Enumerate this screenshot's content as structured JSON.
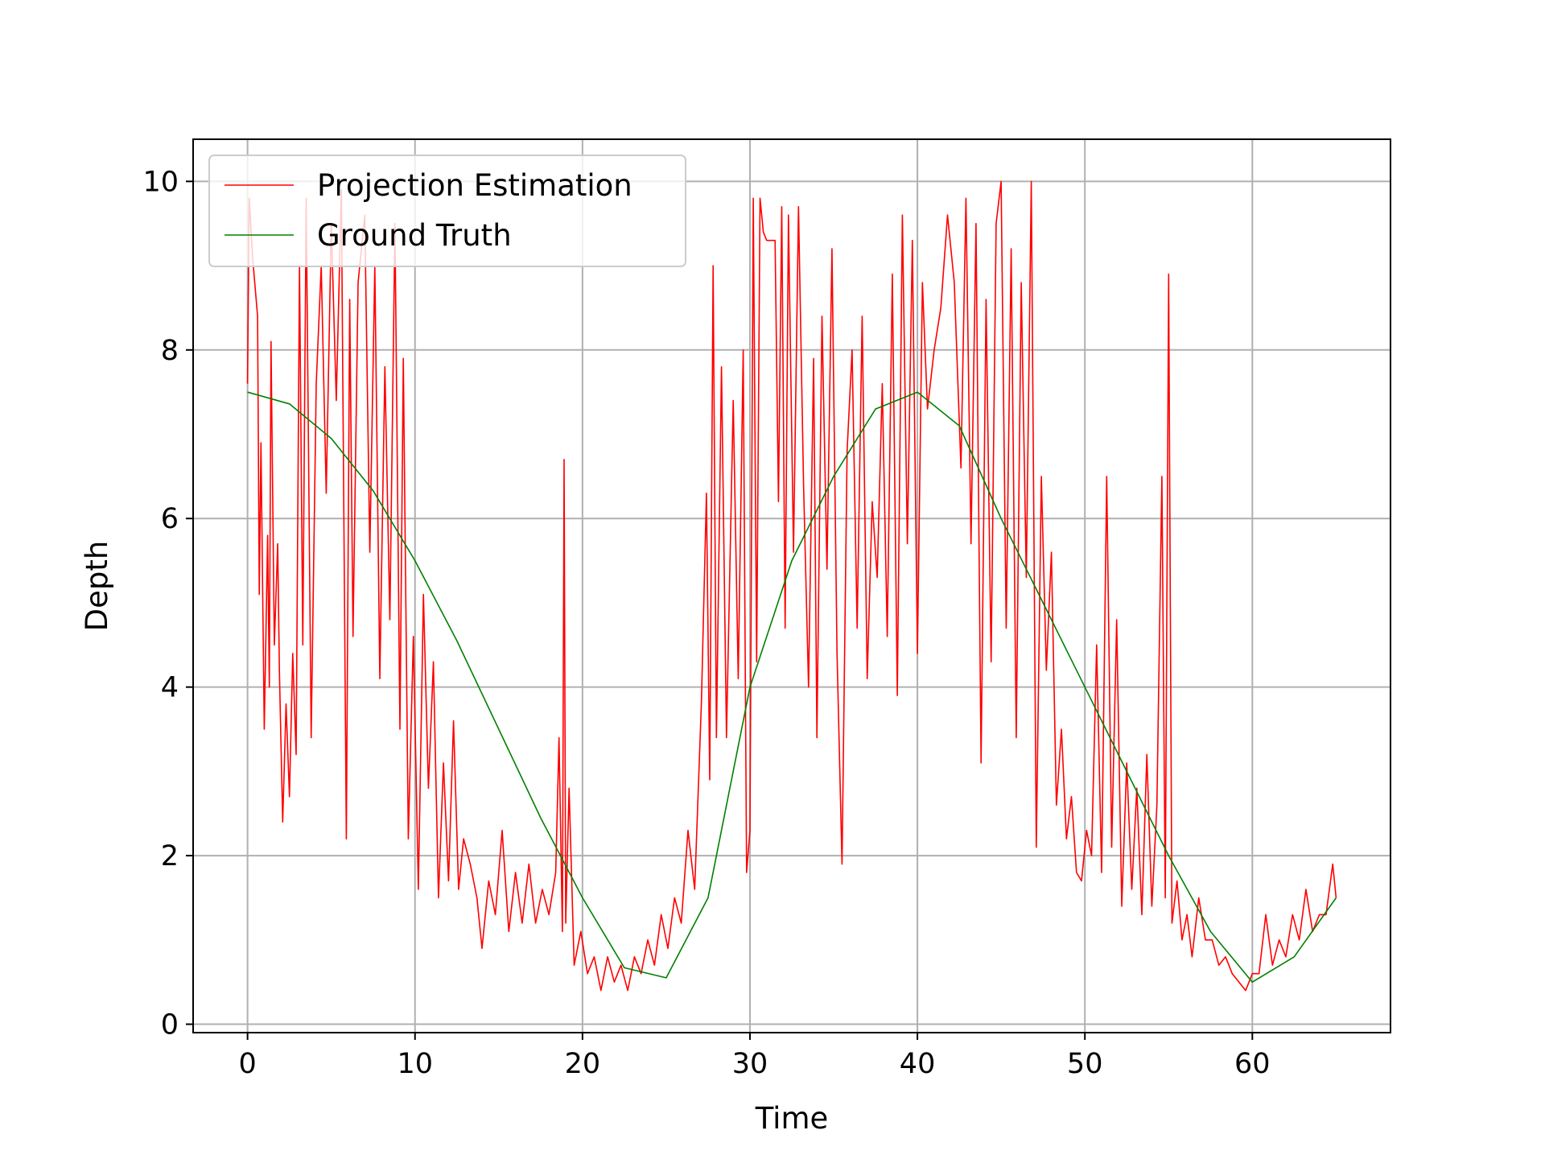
{
  "chart_data": {
    "type": "line",
    "title": "",
    "xlabel": "Time",
    "ylabel": "Depth",
    "xlim": [
      -3.25,
      68.25
    ],
    "ylim": [
      -0.1,
      10.5
    ],
    "x_ticks": [
      0,
      10,
      20,
      30,
      40,
      50,
      60
    ],
    "y_ticks": [
      0,
      2,
      4,
      6,
      8,
      10
    ],
    "grid": true,
    "legend_position": "top-left",
    "colors": {
      "estimation": "#ff0000",
      "truth": "#008000",
      "grid": "#b0b0b0"
    },
    "series": [
      {
        "name": "Projection Estimation",
        "color": "#ff0000",
        "points": [
          [
            0.0,
            7.6
          ],
          [
            0.1,
            9.8
          ],
          [
            0.3,
            9.1
          ],
          [
            0.6,
            8.4
          ],
          [
            0.7,
            5.1
          ],
          [
            0.8,
            6.9
          ],
          [
            1.0,
            3.5
          ],
          [
            1.2,
            5.8
          ],
          [
            1.3,
            4.0
          ],
          [
            1.4,
            8.1
          ],
          [
            1.6,
            4.5
          ],
          [
            1.8,
            5.7
          ],
          [
            1.9,
            4.2
          ],
          [
            2.1,
            2.4
          ],
          [
            2.3,
            3.8
          ],
          [
            2.5,
            2.7
          ],
          [
            2.7,
            4.4
          ],
          [
            2.9,
            3.2
          ],
          [
            3.1,
            9.0
          ],
          [
            3.3,
            4.5
          ],
          [
            3.5,
            9.8
          ],
          [
            3.8,
            3.4
          ],
          [
            4.1,
            7.6
          ],
          [
            4.4,
            9.0
          ],
          [
            4.7,
            6.3
          ],
          [
            5.0,
            9.5
          ],
          [
            5.3,
            7.4
          ],
          [
            5.6,
            9.9
          ],
          [
            5.9,
            2.2
          ],
          [
            6.1,
            8.6
          ],
          [
            6.3,
            4.6
          ],
          [
            6.6,
            8.8
          ],
          [
            7.0,
            9.6
          ],
          [
            7.3,
            5.6
          ],
          [
            7.6,
            9.0
          ],
          [
            7.9,
            4.1
          ],
          [
            8.2,
            7.8
          ],
          [
            8.5,
            4.8
          ],
          [
            8.8,
            9.5
          ],
          [
            9.1,
            3.5
          ],
          [
            9.3,
            7.9
          ],
          [
            9.6,
            2.2
          ],
          [
            9.9,
            4.6
          ],
          [
            10.2,
            1.6
          ],
          [
            10.5,
            5.1
          ],
          [
            10.8,
            2.8
          ],
          [
            11.1,
            4.3
          ],
          [
            11.4,
            1.5
          ],
          [
            11.7,
            3.1
          ],
          [
            12.0,
            1.7
          ],
          [
            12.3,
            3.6
          ],
          [
            12.6,
            1.6
          ],
          [
            12.9,
            2.2
          ],
          [
            13.3,
            1.9
          ],
          [
            13.7,
            1.5
          ],
          [
            14.0,
            0.9
          ],
          [
            14.4,
            1.7
          ],
          [
            14.8,
            1.3
          ],
          [
            15.2,
            2.3
          ],
          [
            15.6,
            1.1
          ],
          [
            16.0,
            1.8
          ],
          [
            16.4,
            1.2
          ],
          [
            16.8,
            1.9
          ],
          [
            17.2,
            1.2
          ],
          [
            17.6,
            1.6
          ],
          [
            18.0,
            1.3
          ],
          [
            18.4,
            1.8
          ],
          [
            18.6,
            3.4
          ],
          [
            18.8,
            1.1
          ],
          [
            18.9,
            6.7
          ],
          [
            19.0,
            1.2
          ],
          [
            19.2,
            2.8
          ],
          [
            19.5,
            0.7
          ],
          [
            19.9,
            1.1
          ],
          [
            20.3,
            0.6
          ],
          [
            20.7,
            0.8
          ],
          [
            21.1,
            0.4
          ],
          [
            21.5,
            0.8
          ],
          [
            21.9,
            0.5
          ],
          [
            22.3,
            0.7
          ],
          [
            22.7,
            0.4
          ],
          [
            23.1,
            0.8
          ],
          [
            23.5,
            0.6
          ],
          [
            23.9,
            1.0
          ],
          [
            24.3,
            0.7
          ],
          [
            24.7,
            1.3
          ],
          [
            25.1,
            0.9
          ],
          [
            25.5,
            1.5
          ],
          [
            25.9,
            1.2
          ],
          [
            26.3,
            2.3
          ],
          [
            26.7,
            1.6
          ],
          [
            27.1,
            3.8
          ],
          [
            27.4,
            6.3
          ],
          [
            27.6,
            2.9
          ],
          [
            27.8,
            9.0
          ],
          [
            28.0,
            3.4
          ],
          [
            28.3,
            7.8
          ],
          [
            28.6,
            3.4
          ],
          [
            29.0,
            7.4
          ],
          [
            29.3,
            4.1
          ],
          [
            29.6,
            8.0
          ],
          [
            29.8,
            1.8
          ],
          [
            30.0,
            2.3
          ],
          [
            30.2,
            9.8
          ],
          [
            30.4,
            4.3
          ],
          [
            30.6,
            9.8
          ],
          [
            30.8,
            9.4
          ],
          [
            31.0,
            9.3
          ],
          [
            31.3,
            9.3
          ],
          [
            31.5,
            9.3
          ],
          [
            31.7,
            6.2
          ],
          [
            31.9,
            9.7
          ],
          [
            32.1,
            4.7
          ],
          [
            32.3,
            9.6
          ],
          [
            32.6,
            5.6
          ],
          [
            32.9,
            9.7
          ],
          [
            33.2,
            6.4
          ],
          [
            33.5,
            4.0
          ],
          [
            33.8,
            7.9
          ],
          [
            34.0,
            3.4
          ],
          [
            34.3,
            8.4
          ],
          [
            34.6,
            5.4
          ],
          [
            34.9,
            9.2
          ],
          [
            35.2,
            4.4
          ],
          [
            35.5,
            1.9
          ],
          [
            35.8,
            6.8
          ],
          [
            36.1,
            8.0
          ],
          [
            36.4,
            4.7
          ],
          [
            36.7,
            8.4
          ],
          [
            37.0,
            4.1
          ],
          [
            37.3,
            6.2
          ],
          [
            37.6,
            5.3
          ],
          [
            37.9,
            7.6
          ],
          [
            38.2,
            4.6
          ],
          [
            38.5,
            8.9
          ],
          [
            38.8,
            3.9
          ],
          [
            39.1,
            9.6
          ],
          [
            39.4,
            5.7
          ],
          [
            39.7,
            9.3
          ],
          [
            40.0,
            4.4
          ],
          [
            40.3,
            8.8
          ],
          [
            40.6,
            7.3
          ],
          [
            41.0,
            8.0
          ],
          [
            41.4,
            8.5
          ],
          [
            41.8,
            9.6
          ],
          [
            42.2,
            8.8
          ],
          [
            42.6,
            6.6
          ],
          [
            42.9,
            9.8
          ],
          [
            43.2,
            5.7
          ],
          [
            43.5,
            9.5
          ],
          [
            43.8,
            3.1
          ],
          [
            44.1,
            8.6
          ],
          [
            44.4,
            4.3
          ],
          [
            44.7,
            9.5
          ],
          [
            45.0,
            10.0
          ],
          [
            45.3,
            4.7
          ],
          [
            45.6,
            9.2
          ],
          [
            45.9,
            3.4
          ],
          [
            46.2,
            8.8
          ],
          [
            46.5,
            5.3
          ],
          [
            46.8,
            10.0
          ],
          [
            47.1,
            2.1
          ],
          [
            47.4,
            6.5
          ],
          [
            47.7,
            4.2
          ],
          [
            48.0,
            5.6
          ],
          [
            48.3,
            2.6
          ],
          [
            48.6,
            3.5
          ],
          [
            48.9,
            2.2
          ],
          [
            49.2,
            2.7
          ],
          [
            49.5,
            1.8
          ],
          [
            49.8,
            1.7
          ],
          [
            50.1,
            2.3
          ],
          [
            50.4,
            2.0
          ],
          [
            50.7,
            4.5
          ],
          [
            51.0,
            1.8
          ],
          [
            51.3,
            6.5
          ],
          [
            51.6,
            2.1
          ],
          [
            51.9,
            4.8
          ],
          [
            52.2,
            1.4
          ],
          [
            52.5,
            3.1
          ],
          [
            52.8,
            1.6
          ],
          [
            53.1,
            2.8
          ],
          [
            53.4,
            1.3
          ],
          [
            53.7,
            3.2
          ],
          [
            54.0,
            1.4
          ],
          [
            54.3,
            2.6
          ],
          [
            54.6,
            6.5
          ],
          [
            54.8,
            1.5
          ],
          [
            55.0,
            8.9
          ],
          [
            55.2,
            1.2
          ],
          [
            55.5,
            1.7
          ],
          [
            55.8,
            1.0
          ],
          [
            56.1,
            1.3
          ],
          [
            56.4,
            0.8
          ],
          [
            56.8,
            1.5
          ],
          [
            57.2,
            1.0
          ],
          [
            57.6,
            1.0
          ],
          [
            58.0,
            0.7
          ],
          [
            58.4,
            0.8
          ],
          [
            58.8,
            0.6
          ],
          [
            59.2,
            0.5
          ],
          [
            59.6,
            0.4
          ],
          [
            60.0,
            0.6
          ],
          [
            60.4,
            0.6
          ],
          [
            60.8,
            1.3
          ],
          [
            61.2,
            0.7
          ],
          [
            61.6,
            1.0
          ],
          [
            62.0,
            0.8
          ],
          [
            62.4,
            1.3
          ],
          [
            62.8,
            1.0
          ],
          [
            63.2,
            1.6
          ],
          [
            63.6,
            1.1
          ],
          [
            64.0,
            1.3
          ],
          [
            64.4,
            1.3
          ],
          [
            64.8,
            1.9
          ],
          [
            65.0,
            1.5
          ]
        ]
      },
      {
        "name": "Ground Truth",
        "color": "#008000",
        "points": [
          [
            0,
            7.5
          ],
          [
            2.5,
            7.36
          ],
          [
            5,
            6.95
          ],
          [
            7.5,
            6.33
          ],
          [
            10,
            5.5
          ],
          [
            12.5,
            4.55
          ],
          [
            15,
            3.5
          ],
          [
            17.5,
            2.45
          ],
          [
            20,
            1.5
          ],
          [
            22.5,
            0.67
          ],
          [
            25,
            0.55
          ],
          [
            27.5,
            1.5
          ],
          [
            30,
            4.0
          ],
          [
            32.5,
            5.5
          ],
          [
            35,
            6.5
          ],
          [
            37.5,
            7.3
          ],
          [
            40,
            7.5
          ],
          [
            42.5,
            7.1
          ],
          [
            45,
            6.0
          ],
          [
            47.5,
            5.0
          ],
          [
            50,
            4.0
          ],
          [
            52.5,
            3.0
          ],
          [
            55,
            2.0
          ],
          [
            57.5,
            1.1
          ],
          [
            60,
            0.5
          ],
          [
            62.5,
            0.8
          ],
          [
            65,
            1.5
          ]
        ]
      }
    ]
  }
}
